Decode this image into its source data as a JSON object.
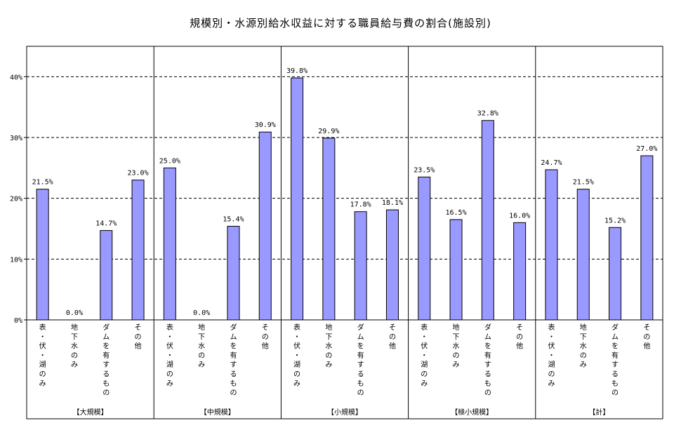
{
  "chart_data": {
    "type": "bar",
    "title": "規模別・水源別給水収益に対する職員給与費の割合(施設別)",
    "ylim": [
      0,
      45
    ],
    "yticks": [
      0,
      10,
      20,
      30,
      40
    ],
    "ytick_labels": [
      "0%",
      "10%",
      "20%",
      "30%",
      "40%"
    ],
    "grid": true,
    "bar_color": "#9999ff",
    "categories": [
      "表・伏・湖のみ",
      "地下水のみ",
      "ダムを有するもの",
      "その他"
    ],
    "groups": [
      {
        "label": "【大規模】",
        "values": [
          21.5,
          0.0,
          14.7,
          23.0
        ],
        "labels": [
          "21.5%",
          "0.0%",
          "14.7%",
          "23.0%"
        ]
      },
      {
        "label": "【中規模】",
        "values": [
          25.0,
          0.0,
          15.4,
          30.9
        ],
        "labels": [
          "25.0%",
          "0.0%",
          "15.4%",
          "30.9%"
        ]
      },
      {
        "label": "【小規模】",
        "values": [
          39.8,
          29.9,
          17.8,
          18.1
        ],
        "labels": [
          "39.8%",
          "29.9%",
          "17.8%",
          "18.1%"
        ]
      },
      {
        "label": "【極小規模】",
        "values": [
          23.5,
          16.5,
          32.8,
          16.0
        ],
        "labels": [
          "23.5%",
          "16.5%",
          "32.8%",
          "16.0%"
        ]
      },
      {
        "label": "【計】",
        "values": [
          24.7,
          21.5,
          15.2,
          27.0
        ],
        "labels": [
          "24.7%",
          "21.5%",
          "15.2%",
          "27.0%"
        ]
      }
    ]
  }
}
